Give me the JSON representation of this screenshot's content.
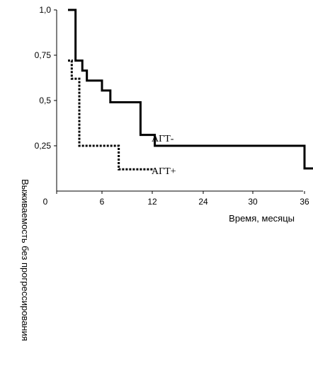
{
  "chart_data": {
    "type": "line",
    "step": true,
    "xlabel": "Время, месяцы",
    "ylabel": "Выживаемость без прогрессирования",
    "xlim": [
      0,
      36
    ],
    "ylim": [
      0,
      1.0
    ],
    "x_ticks": [
      {
        "value": 0,
        "label": "0"
      },
      {
        "value": 6,
        "label": "6"
      },
      {
        "value": 12,
        "label": "12"
      },
      {
        "value": 24,
        "label": "24"
      },
      {
        "value": 30,
        "label": "30"
      },
      {
        "value": 36,
        "label": "36"
      }
    ],
    "y_ticks": [
      {
        "value": 0.25,
        "label": "0,25"
      },
      {
        "value": 0.5,
        "label": "0,5"
      },
      {
        "value": 0.75,
        "label": "0,75"
      },
      {
        "value": 1.0,
        "label": "1,0"
      }
    ],
    "grid": false,
    "series": [
      {
        "name": "АГТ-",
        "style": "solid",
        "color": "#000000",
        "points": [
          {
            "x": 1.5,
            "y": 1.0
          },
          {
            "x": 2.5,
            "y": 0.72
          },
          {
            "x": 3.4,
            "y": 0.665
          },
          {
            "x": 4.0,
            "y": 0.61
          },
          {
            "x": 6.0,
            "y": 0.555
          },
          {
            "x": 7.0,
            "y": 0.49
          },
          {
            "x": 10.6,
            "y": 0.31
          },
          {
            "x": 12.6,
            "y": 0.25
          },
          {
            "x": 36.0,
            "y": 0.125
          },
          {
            "x": 39.0,
            "y": 0.125
          }
        ]
      },
      {
        "name": "АГТ+",
        "style": "dotted",
        "color": "#000000",
        "points": [
          {
            "x": 1.5,
            "y": 0.72
          },
          {
            "x": 2.0,
            "y": 0.62
          },
          {
            "x": 3.0,
            "y": 0.25
          },
          {
            "x": 8.0,
            "y": 0.12
          },
          {
            "x": 12.5,
            "y": 0.12
          }
        ]
      }
    ]
  }
}
